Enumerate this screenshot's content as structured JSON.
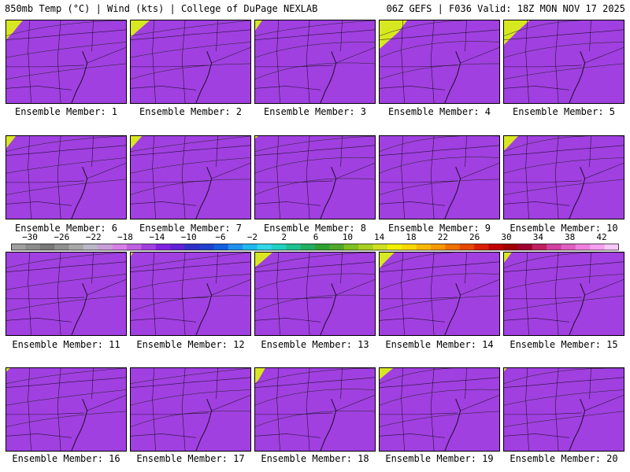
{
  "header": {
    "left": "850mb Temp (°C) | Wind (kts) | College of DuPage NEXLAB",
    "right": "06Z GEFS | F036 Valid: 18Z MON NOV 17 2025"
  },
  "panels": [
    {
      "label": "Ensemble Member: 1",
      "cold_reach": 0.45
    },
    {
      "label": "Ensemble Member: 2",
      "cold_reach": 0.42
    },
    {
      "label": "Ensemble Member: 3",
      "cold_reach": 0.48
    },
    {
      "label": "Ensemble Member: 4",
      "cold_reach": 0.35
    },
    {
      "label": "Ensemble Member: 5",
      "cold_reach": 0.32
    },
    {
      "label": "Ensemble Member: 6",
      "cold_reach": 0.5
    },
    {
      "label": "Ensemble Member: 7",
      "cold_reach": 0.55
    },
    {
      "label": "Ensemble Member: 8",
      "cold_reach": 0.58
    },
    {
      "label": "Ensemble Member: 9",
      "cold_reach": 0.6
    },
    {
      "label": "Ensemble Member: 10",
      "cold_reach": 0.5
    },
    {
      "label": "Ensemble Member: 11",
      "cold_reach": 0.62
    },
    {
      "label": "Ensemble Member: 12",
      "cold_reach": 0.6
    },
    {
      "label": "Ensemble Member: 13",
      "cold_reach": 0.5
    },
    {
      "label": "Ensemble Member: 14",
      "cold_reach": 0.4
    },
    {
      "label": "Ensemble Member: 15",
      "cold_reach": 0.55
    },
    {
      "label": "Ensemble Member: 16",
      "cold_reach": 0.62
    },
    {
      "label": "Ensemble Member: 17",
      "cold_reach": 0.62
    },
    {
      "label": "Ensemble Member: 18",
      "cold_reach": 0.55
    },
    {
      "label": "Ensemble Member: 19",
      "cold_reach": 0.5
    },
    {
      "label": "Ensemble Member: 20",
      "cold_reach": 0.58
    }
  ],
  "colorbar": {
    "tick_labels": [
      "−30",
      "−26",
      "−22",
      "−18",
      "−14",
      "−10",
      "−6",
      "−2",
      "2",
      "6",
      "10",
      "14",
      "18",
      "22",
      "26",
      "30",
      "34",
      "38",
      "42"
    ],
    "colors": [
      "#a0a0a0",
      "#8c8c8c",
      "#787878",
      "#909090",
      "#a8a8a8",
      "#b8b8c8",
      "#c8a0d8",
      "#d880e8",
      "#c060e0",
      "#a040e0",
      "#8020e0",
      "#6020d8",
      "#3030c8",
      "#2040d0",
      "#1060e0",
      "#2090f0",
      "#20b8f0",
      "#30d8e8",
      "#20d0c0",
      "#20c090",
      "#20b060",
      "#30a030",
      "#50a828",
      "#80c020",
      "#a8d020",
      "#d0e020",
      "#f0f000",
      "#f8d800",
      "#f8b800",
      "#f89800",
      "#f07000",
      "#e84800",
      "#d82000",
      "#c00000",
      "#a00000",
      "#a00030",
      "#c02060",
      "#d040a0",
      "#e060c0",
      "#f080e0",
      "#f8a0f0",
      "#f8c8f8"
    ]
  }
}
